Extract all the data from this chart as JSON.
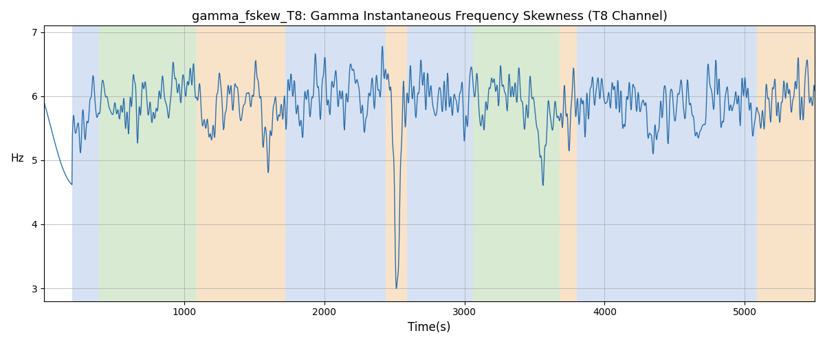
{
  "title": "gamma_fskew_T8: Gamma Instantaneous Frequency Skewness (T8 Channel)",
  "xlabel": "Time(s)",
  "ylabel": "Hz",
  "xlim": [
    0,
    5500
  ],
  "ylim": [
    2.8,
    7.1
  ],
  "yticks": [
    3,
    4,
    5,
    6,
    7
  ],
  "xticks": [
    1000,
    2000,
    3000,
    4000,
    5000
  ],
  "line_color": "#2c6fad",
  "line_width": 1.0,
  "bg_color": "#ffffff",
  "grid_color": "#aaaaaa",
  "background_regions": [
    {
      "xstart": 200,
      "xend": 390,
      "color": "#aec6e8",
      "alpha": 0.5
    },
    {
      "xstart": 390,
      "xend": 1090,
      "color": "#b5d6a7",
      "alpha": 0.5
    },
    {
      "xstart": 1090,
      "xend": 1720,
      "color": "#f5c993",
      "alpha": 0.5
    },
    {
      "xstart": 1720,
      "xend": 2440,
      "color": "#aec6e8",
      "alpha": 0.5
    },
    {
      "xstart": 2440,
      "xend": 2590,
      "color": "#f5c993",
      "alpha": 0.5
    },
    {
      "xstart": 2590,
      "xend": 3060,
      "color": "#aec6e8",
      "alpha": 0.5
    },
    {
      "xstart": 3060,
      "xend": 3680,
      "color": "#b5d6a7",
      "alpha": 0.5
    },
    {
      "xstart": 3680,
      "xend": 3800,
      "color": "#f5c993",
      "alpha": 0.5
    },
    {
      "xstart": 3800,
      "xend": 5090,
      "color": "#aec6e8",
      "alpha": 0.5
    },
    {
      "xstart": 5090,
      "xend": 5500,
      "color": "#f5c993",
      "alpha": 0.5
    }
  ],
  "num_points": 1800,
  "seed": 12
}
